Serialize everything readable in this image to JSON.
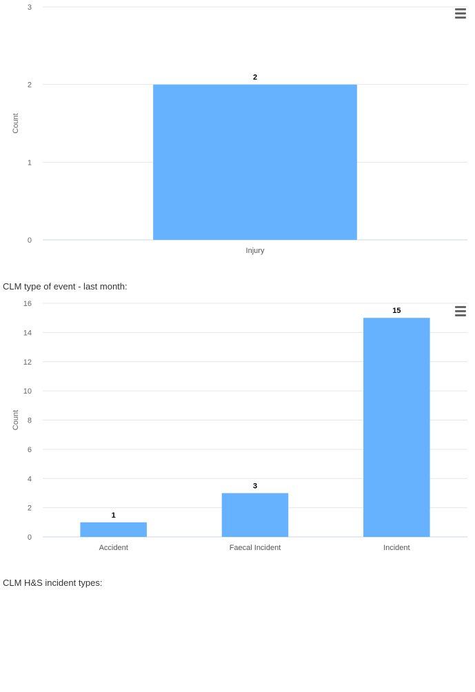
{
  "charts": [
    {
      "id": "chart1",
      "chart_data": {
        "type": "bar",
        "categories": [
          "Injury"
        ],
        "values": [
          2
        ],
        "ylabel": "Count",
        "ylim": [
          0,
          3
        ],
        "yticks": [
          0,
          1,
          2,
          3
        ],
        "grid": true,
        "bar_color": "#66b2ff"
      }
    },
    {
      "id": "chart2",
      "chart_data": {
        "type": "bar",
        "categories": [
          "Accident",
          "Faecal Incident",
          "Incident"
        ],
        "values": [
          1,
          3,
          15
        ],
        "ylabel": "Count",
        "ylim": [
          0,
          16
        ],
        "yticks": [
          0,
          2,
          4,
          6,
          8,
          10,
          12,
          14,
          16
        ],
        "grid": true,
        "bar_color": "#66b2ff"
      }
    }
  ],
  "labels": {
    "section2": "CLM type of event - last month:",
    "section3": "CLM H&S incident types:"
  },
  "icons": {
    "menu": "hamburger-menu-icon"
  }
}
